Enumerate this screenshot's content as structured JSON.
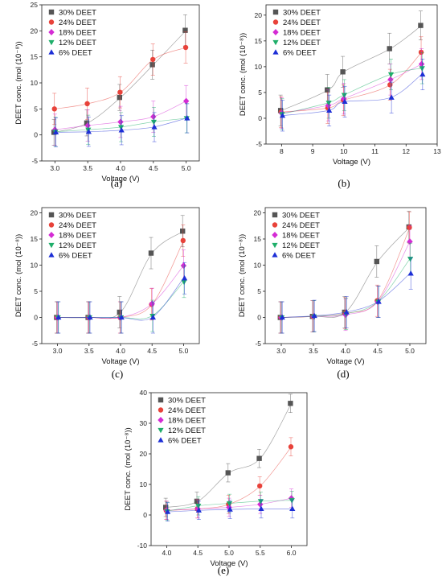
{
  "figure": {
    "captions": [
      "(a)",
      "(b)",
      "(c)",
      "(d)",
      "(e)"
    ]
  },
  "colors": {
    "30% DEET": "#555555",
    "24% DEET": "#e8423a",
    "18% DEET": "#d42bd4",
    "12% DEET": "#1fae6a",
    "6% DEET": "#1d2fd6"
  },
  "chart_data": [
    {
      "type": "scatter",
      "panel": "(a)",
      "xlabel": "Voltage (V)",
      "ylabel": "DEET conc. (mol (10⁻⁸))",
      "xlim": [
        2.8,
        5.2
      ],
      "ylim": [
        -5,
        25
      ],
      "xticks": [
        3.0,
        3.5,
        4.0,
        4.5,
        5.0
      ],
      "yticks": [
        -5,
        0,
        5,
        10,
        15,
        20,
        25
      ],
      "legend": "top-left",
      "x": [
        3.0,
        3.5,
        4.0,
        4.5,
        5.0
      ],
      "series": [
        {
          "name": "30% DEET",
          "values": [
            0.5,
            2.3,
            7.2,
            13.5,
            20.1
          ],
          "errors": [
            2.5,
            2.5,
            2.5,
            2.8,
            3.0
          ]
        },
        {
          "name": "24% DEET",
          "values": [
            5.0,
            6.0,
            8.2,
            14.5,
            16.8
          ],
          "errors": [
            3.0,
            3.0,
            3.0,
            3.0,
            3.0
          ]
        },
        {
          "name": "18% DEET",
          "values": [
            1.0,
            1.8,
            2.5,
            3.5,
            6.5
          ],
          "errors": [
            3.0,
            3.0,
            3.0,
            3.0,
            3.0
          ]
        },
        {
          "name": "12% DEET",
          "values": [
            0.6,
            1.0,
            1.5,
            2.5,
            3.2
          ],
          "errors": [
            2.8,
            2.8,
            2.8,
            2.8,
            2.8
          ]
        },
        {
          "name": "6% DEET",
          "values": [
            0.5,
            0.6,
            0.9,
            1.5,
            3.2
          ],
          "errors": [
            2.8,
            2.8,
            2.8,
            2.8,
            2.8
          ]
        }
      ]
    },
    {
      "type": "scatter",
      "panel": "(b)",
      "xlabel": "Voltage (V)",
      "ylabel": "DEET conc. (mol (10⁻⁸))",
      "xlim": [
        7.5,
        13
      ],
      "ylim": [
        -5,
        22
      ],
      "xticks": [
        8,
        9,
        10,
        11,
        12,
        13
      ],
      "yticks": [
        -5,
        0,
        5,
        10,
        15,
        20
      ],
      "legend": "top-left",
      "x": [
        8.0,
        9.5,
        10.0,
        11.5,
        12.5
      ],
      "series": [
        {
          "name": "30% DEET",
          "values": [
            1.5,
            5.5,
            9.0,
            13.5,
            18.0
          ],
          "errors": [
            3.0,
            3.0,
            3.0,
            3.0,
            2.8
          ]
        },
        {
          "name": "24% DEET",
          "values": [
            1.2,
            2.0,
            3.5,
            6.5,
            12.8
          ],
          "errors": [
            3.0,
            3.0,
            3.0,
            3.0,
            3.0
          ]
        },
        {
          "name": "18% DEET",
          "values": [
            1.0,
            2.5,
            3.8,
            7.5,
            10.5
          ],
          "errors": [
            3.0,
            3.0,
            3.0,
            3.0,
            3.0
          ]
        },
        {
          "name": "12% DEET",
          "values": [
            0.8,
            3.0,
            4.5,
            8.5,
            9.7
          ],
          "errors": [
            3.0,
            3.0,
            3.0,
            3.0,
            3.0
          ]
        },
        {
          "name": "6% DEET",
          "values": [
            0.5,
            1.5,
            3.2,
            4.0,
            8.5
          ],
          "errors": [
            3.0,
            3.0,
            3.0,
            3.0,
            3.0
          ]
        }
      ]
    },
    {
      "type": "scatter",
      "panel": "(c)",
      "xlabel": "Voltage (V)",
      "ylabel": "DEET conc. (mol (10⁻⁸))",
      "xlim": [
        2.75,
        5.25
      ],
      "ylim": [
        -5,
        21
      ],
      "xticks": [
        3.0,
        3.5,
        4.0,
        4.5,
        5.0
      ],
      "yticks": [
        -5,
        0,
        5,
        10,
        15,
        20
      ],
      "legend": "top-left",
      "x": [
        3.0,
        3.5,
        4.0,
        4.5,
        5.0
      ],
      "series": [
        {
          "name": "30% DEET",
          "values": [
            0.0,
            0.0,
            1.0,
            12.3,
            16.5
          ],
          "errors": [
            3.0,
            3.0,
            3.0,
            3.0,
            3.0
          ]
        },
        {
          "name": "24% DEET",
          "values": [
            0.0,
            0.0,
            0.0,
            2.5,
            14.7
          ],
          "errors": [
            3.0,
            3.0,
            3.0,
            3.0,
            3.0
          ]
        },
        {
          "name": "18% DEET",
          "values": [
            0.0,
            0.0,
            0.0,
            2.6,
            9.9
          ],
          "errors": [
            3.0,
            3.0,
            3.0,
            3.0,
            3.0
          ]
        },
        {
          "name": "12% DEET",
          "values": [
            0.0,
            0.0,
            0.0,
            0.3,
            6.8
          ],
          "errors": [
            3.0,
            3.0,
            3.0,
            3.0,
            3.0
          ]
        },
        {
          "name": "6% DEET",
          "values": [
            0.0,
            0.0,
            0.0,
            0.0,
            7.5
          ],
          "errors": [
            3.0,
            3.0,
            3.0,
            3.0,
            3.0
          ]
        }
      ]
    },
    {
      "type": "scatter",
      "panel": "(d)",
      "xlabel": "Voltage (V)",
      "ylabel": "DEET conc. (mol (10⁻⁸))",
      "xlim": [
        2.75,
        5.25
      ],
      "ylim": [
        -5,
        21
      ],
      "xticks": [
        3.0,
        3.5,
        4.0,
        4.5,
        5.0
      ],
      "yticks": [
        -5,
        0,
        5,
        10,
        15,
        20
      ],
      "legend": "top-left",
      "x": [
        3.0,
        3.5,
        4.0,
        4.5,
        5.0
      ],
      "series": [
        {
          "name": "30% DEET",
          "values": [
            0.0,
            0.2,
            1.0,
            10.7,
            17.3
          ],
          "errors": [
            3.0,
            3.0,
            3.0,
            3.0,
            3.0
          ]
        },
        {
          "name": "24% DEET",
          "values": [
            0.0,
            0.2,
            0.8,
            3.2,
            17.2
          ],
          "errors": [
            3.0,
            3.0,
            3.0,
            3.0,
            3.0
          ]
        },
        {
          "name": "18% DEET",
          "values": [
            0.0,
            0.2,
            0.5,
            3.0,
            14.5
          ],
          "errors": [
            3.0,
            3.0,
            3.0,
            3.0,
            3.0
          ]
        },
        {
          "name": "12% DEET",
          "values": [
            0.0,
            0.2,
            0.7,
            3.0,
            11.2
          ],
          "errors": [
            3.0,
            3.0,
            3.0,
            3.0,
            3.0
          ]
        },
        {
          "name": "6% DEET",
          "values": [
            0.0,
            0.3,
            1.0,
            3.0,
            8.4
          ],
          "errors": [
            3.0,
            3.0,
            3.0,
            3.0,
            3.0
          ]
        }
      ]
    },
    {
      "type": "scatter",
      "panel": "(e)",
      "xlabel": "Voltage (V)",
      "ylabel": "DEET conc. (mol (10⁻⁸))",
      "xlim": [
        3.75,
        6.25
      ],
      "ylim": [
        -10,
        40
      ],
      "xticks": [
        4.0,
        4.5,
        5.0,
        5.5,
        6.0
      ],
      "yticks": [
        -10,
        0,
        10,
        20,
        30,
        40
      ],
      "legend": "top-left",
      "x": [
        4.0,
        4.5,
        5.0,
        5.5,
        6.0
      ],
      "series": [
        {
          "name": "30% DEET",
          "values": [
            2.5,
            4.5,
            13.8,
            18.5,
            36.5
          ],
          "errors": [
            3.0,
            3.0,
            3.0,
            3.0,
            3.0
          ]
        },
        {
          "name": "24% DEET",
          "values": [
            1.5,
            2.0,
            3.5,
            9.5,
            22.3
          ],
          "errors": [
            3.0,
            3.0,
            3.0,
            3.0,
            3.0
          ]
        },
        {
          "name": "18% DEET",
          "values": [
            1.5,
            2.0,
            2.5,
            3.5,
            5.5
          ],
          "errors": [
            3.0,
            3.0,
            3.0,
            3.0,
            3.0
          ]
        },
        {
          "name": "12% DEET",
          "values": [
            1.2,
            3.0,
            3.8,
            4.5,
            4.8
          ],
          "errors": [
            3.0,
            3.0,
            3.0,
            3.0,
            3.0
          ]
        },
        {
          "name": "6% DEET",
          "values": [
            1.0,
            1.5,
            1.8,
            2.0,
            2.0
          ],
          "errors": [
            3.0,
            3.0,
            3.0,
            3.0,
            3.0
          ]
        }
      ]
    }
  ]
}
